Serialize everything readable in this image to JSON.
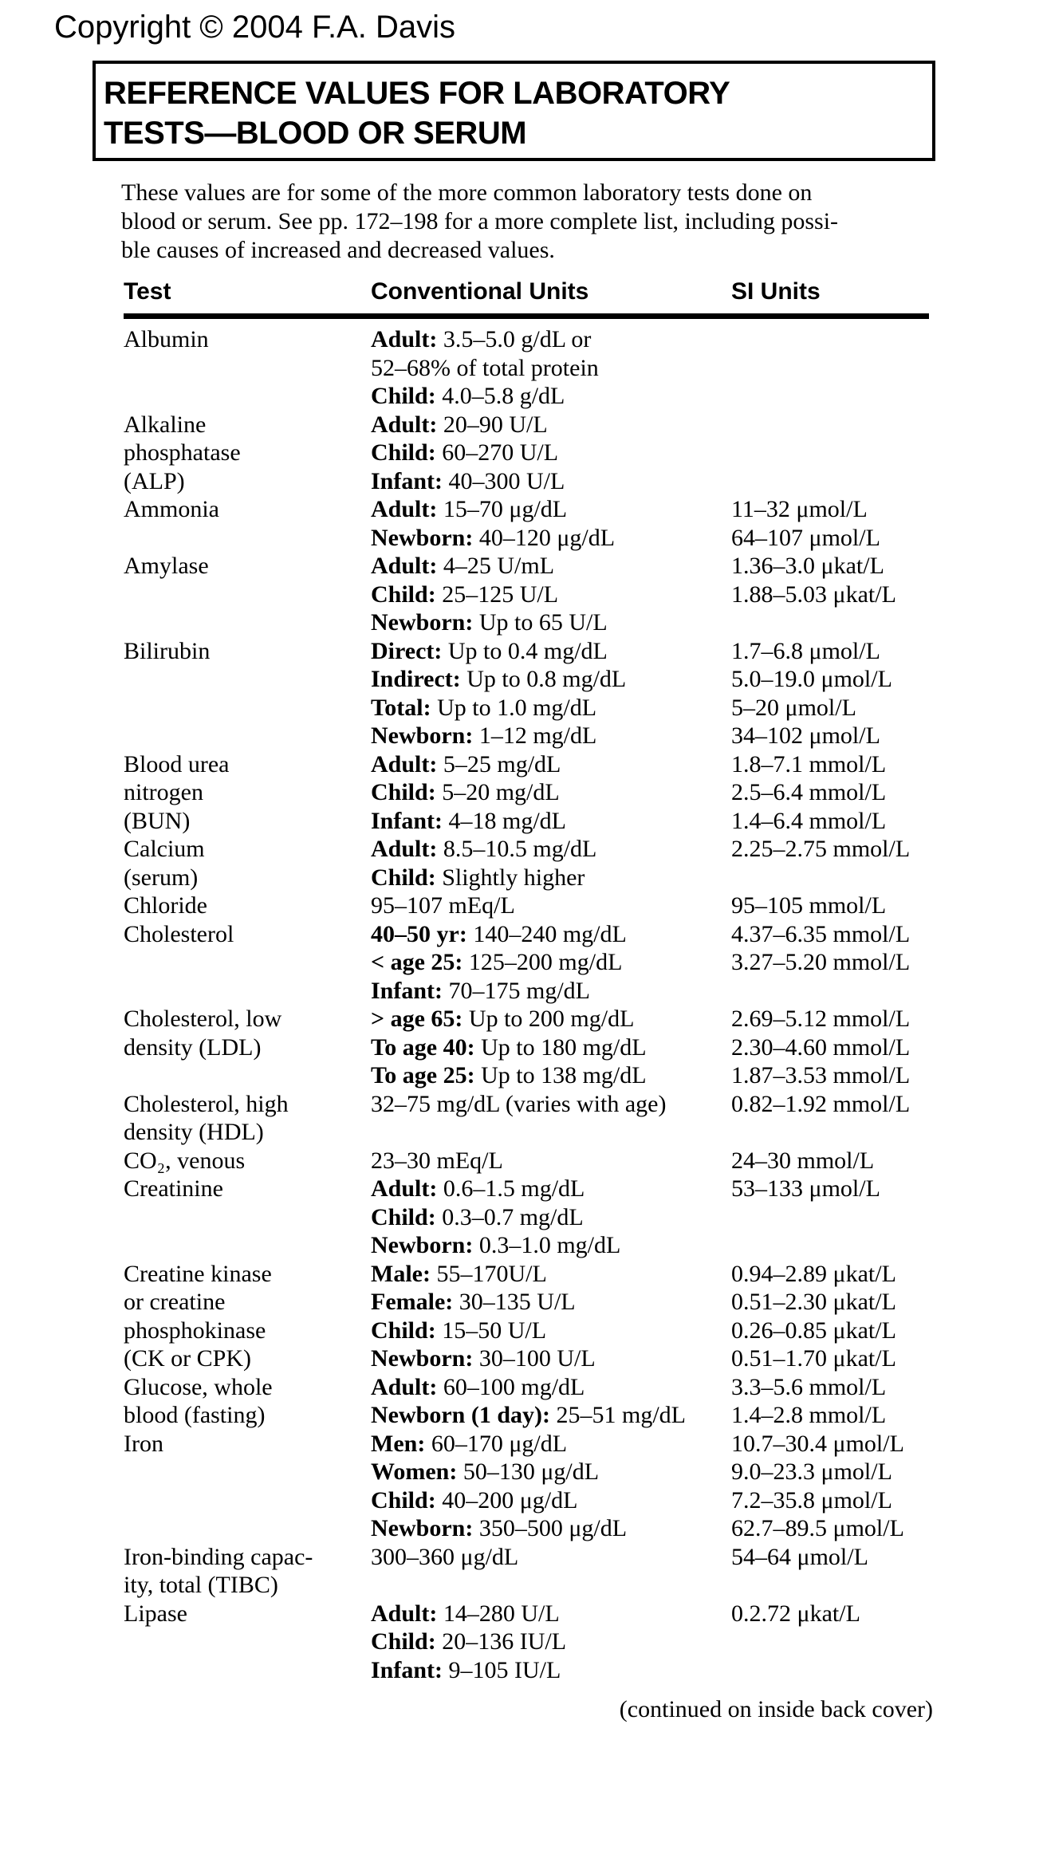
{
  "page": {
    "copyright": "Copyright © 2004 F.A. Davis",
    "title_line1": "REFERENCE VALUES FOR LABORATORY",
    "title_line2": "TESTS—BLOOD OR SERUM",
    "intro_line1": "These values are for some of the more common laboratory tests done on",
    "intro_line2": "blood or serum. See pp. 172–198 for a more complete list, including possi-",
    "intro_line3": "ble causes of increased and decreased values.",
    "footer": "(continued on inside back cover)"
  },
  "table": {
    "headers": [
      "Test",
      "Conventional Units",
      "SI Units"
    ],
    "rows": [
      {
        "test": [
          "Albumin"
        ],
        "entries": [
          {
            "label": "Adult:",
            "conv": "3.5–5.0 g/dL or",
            "si": ""
          },
          {
            "label": "",
            "conv": "52–68% of total protein",
            "si": ""
          },
          {
            "label": "Child:",
            "conv": "4.0–5.8 g/dL",
            "si": ""
          }
        ]
      },
      {
        "test": [
          "Alkaline",
          "phosphatase",
          "(ALP)"
        ],
        "entries": [
          {
            "label": "Adult:",
            "conv": "20–90 U/L",
            "si": ""
          },
          {
            "label": "Child:",
            "conv": "60–270 U/L",
            "si": ""
          },
          {
            "label": "Infant:",
            "conv": "40–300 U/L",
            "si": ""
          }
        ]
      },
      {
        "test": [
          "Ammonia"
        ],
        "entries": [
          {
            "label": "Adult:",
            "conv": "15–70 μg/dL",
            "si": "11–32 μmol/L"
          },
          {
            "label": "Newborn:",
            "conv": "40–120 μg/dL",
            "si": "64–107 μmol/L"
          }
        ]
      },
      {
        "test": [
          "Amylase"
        ],
        "entries": [
          {
            "label": "Adult:",
            "conv": "4–25 U/mL",
            "si": "1.36–3.0 μkat/L"
          },
          {
            "label": "Child:",
            "conv": "25–125 U/L",
            "si": "1.88–5.03 μkat/L"
          },
          {
            "label": "Newborn:",
            "conv": "Up to 65 U/L",
            "si": ""
          }
        ]
      },
      {
        "test": [
          "Bilirubin"
        ],
        "entries": [
          {
            "label": "Direct:",
            "conv": "Up to 0.4 mg/dL",
            "si": "1.7–6.8 μmol/L"
          },
          {
            "label": "Indirect:",
            "conv": "Up to 0.8 mg/dL",
            "si": "5.0–19.0 μmol/L"
          },
          {
            "label": "Total:",
            "conv": "Up to 1.0 mg/dL",
            "si": "5–20 μmol/L"
          },
          {
            "label": "Newborn:",
            "conv": "1–12 mg/dL",
            "si": "34–102 μmol/L"
          }
        ]
      },
      {
        "test": [
          "Blood urea",
          "nitrogen",
          "(BUN)"
        ],
        "entries": [
          {
            "label": "Adult:",
            "conv": "5–25 mg/dL",
            "si": "1.8–7.1 mmol/L"
          },
          {
            "label": "Child:",
            "conv": "5–20 mg/dL",
            "si": "2.5–6.4 mmol/L"
          },
          {
            "label": "Infant:",
            "conv": "4–18 mg/dL",
            "si": "1.4–6.4 mmol/L"
          }
        ]
      },
      {
        "test": [
          "Calcium",
          "(serum)"
        ],
        "entries": [
          {
            "label": "Adult:",
            "conv": "8.5–10.5 mg/dL",
            "si": "2.25–2.75 mmol/L"
          },
          {
            "label": "Child:",
            "conv": "Slightly higher",
            "si": ""
          }
        ]
      },
      {
        "test": [
          "Chloride"
        ],
        "entries": [
          {
            "label": "",
            "conv": "95–107 mEq/L",
            "si": "95–105 mmol/L"
          }
        ]
      },
      {
        "test": [
          "Cholesterol"
        ],
        "entries": [
          {
            "label": "40–50 yr:",
            "conv": "140–240 mg/dL",
            "si": "4.37–6.35 mmol/L"
          },
          {
            "label": "< age 25:",
            "conv": "125–200 mg/dL",
            "si": "3.27–5.20 mmol/L"
          },
          {
            "label": "Infant:",
            "conv": "70–175 mg/dL",
            "si": ""
          }
        ]
      },
      {
        "test": [
          "Cholesterol, low",
          "density (LDL)"
        ],
        "entries": [
          {
            "label": "> age 65:",
            "conv": "Up to 200 mg/dL",
            "si": "2.69–5.12 mmol/L"
          },
          {
            "label": "To age 40:",
            "conv": "Up to 180 mg/dL",
            "si": "2.30–4.60 mmol/L"
          },
          {
            "label": "To age 25:",
            "conv": "Up to 138 mg/dL",
            "si": "1.87–3.53 mmol/L"
          }
        ]
      },
      {
        "test": [
          "Cholesterol, high",
          "density (HDL)"
        ],
        "entries": [
          {
            "label": "",
            "conv": "32–75 mg/dL (varies with age)",
            "si": "0.82–1.92 mmol/L"
          }
        ]
      },
      {
        "test": [
          "CO₂, venous"
        ],
        "entries": [
          {
            "label": "",
            "conv": "23–30 mEq/L",
            "si": "24–30 mmol/L"
          }
        ]
      },
      {
        "test": [
          "Creatinine"
        ],
        "entries": [
          {
            "label": "Adult:",
            "conv": "0.6–1.5 mg/dL",
            "si": "53–133 μmol/L"
          },
          {
            "label": "Child:",
            "conv": "0.3–0.7 mg/dL",
            "si": ""
          },
          {
            "label": "Newborn:",
            "conv": "0.3–1.0 mg/dL",
            "si": ""
          }
        ]
      },
      {
        "test": [
          "Creatine kinase",
          "or creatine",
          "phosphokinase",
          "(CK or CPK)"
        ],
        "entries": [
          {
            "label": "Male:",
            "conv": "55–170U/L",
            "si": "0.94–2.89 μkat/L"
          },
          {
            "label": "Female:",
            "conv": "30–135 U/L",
            "si": "0.51–2.30 μkat/L"
          },
          {
            "label": "Child:",
            "conv": "15–50 U/L",
            "si": "0.26–0.85 μkat/L"
          },
          {
            "label": "Newborn:",
            "conv": "30–100 U/L",
            "si": "0.51–1.70 μkat/L"
          }
        ]
      },
      {
        "test": [
          "Glucose, whole",
          "blood (fasting)"
        ],
        "entries": [
          {
            "label": "Adult:",
            "conv": "60–100 mg/dL",
            "si": "3.3–5.6 mmol/L"
          },
          {
            "label": "Newborn (1 day):",
            "conv": "25–51 mg/dL",
            "si": "1.4–2.8 mmol/L"
          }
        ]
      },
      {
        "test": [
          "Iron"
        ],
        "entries": [
          {
            "label": "Men:",
            "conv": "60–170 μg/dL",
            "si": "10.7–30.4 μmol/L"
          },
          {
            "label": "Women:",
            "conv": "50–130 μg/dL",
            "si": "9.0–23.3 μmol/L"
          },
          {
            "label": "Child:",
            "conv": "40–200 μg/dL",
            "si": "7.2–35.8 μmol/L"
          },
          {
            "label": "Newborn:",
            "conv": "350–500 μg/dL",
            "si": "62.7–89.5 μmol/L"
          }
        ]
      },
      {
        "test": [
          "Iron-binding capac-",
          "ity, total (TIBC)"
        ],
        "entries": [
          {
            "label": "",
            "conv": "300–360 μg/dL",
            "si": "54–64 μmol/L"
          }
        ]
      },
      {
        "test": [
          "Lipase"
        ],
        "entries": [
          {
            "label": "Adult:",
            "conv": "14–280 U/L",
            "si": "0.2.72 μkat/L"
          },
          {
            "label": "Child:",
            "conv": "20–136 IU/L",
            "si": ""
          },
          {
            "label": "Infant:",
            "conv": "9–105 IU/L",
            "si": ""
          }
        ]
      }
    ]
  }
}
